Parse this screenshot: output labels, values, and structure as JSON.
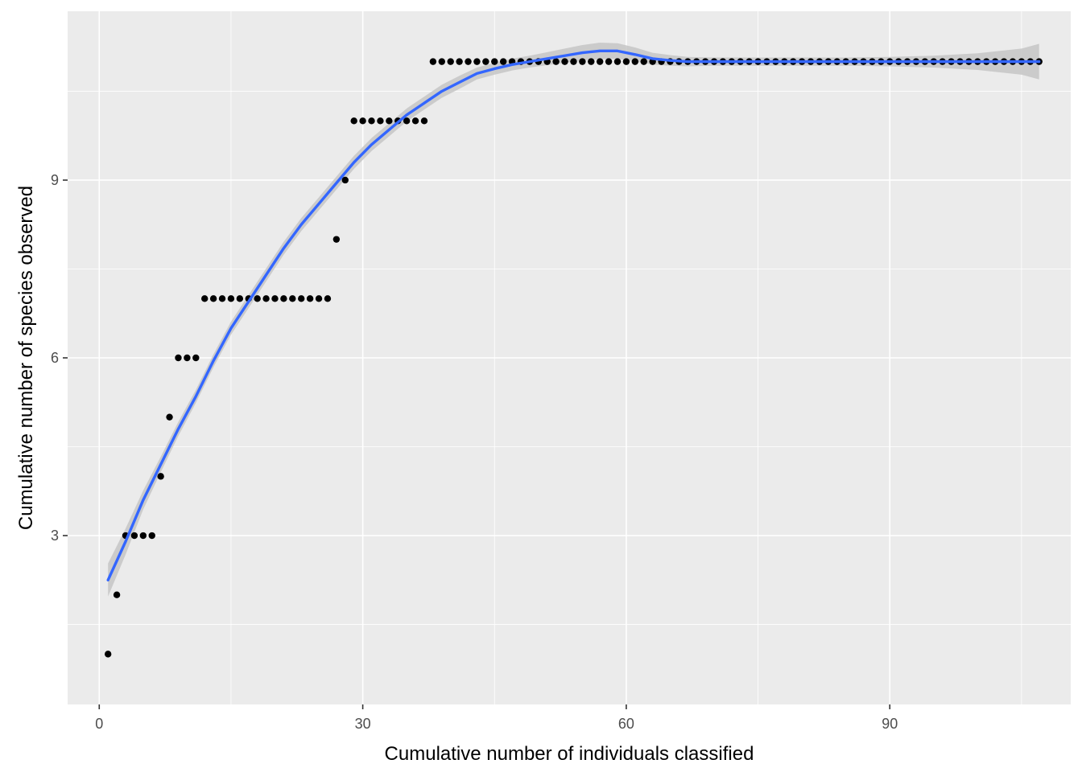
{
  "chart_data": {
    "type": "scatter",
    "title": "",
    "xlabel": "Cumulative number of individuals classified",
    "ylabel": "Cumulative number of species observed",
    "xlim": [
      -3.6,
      110.6
    ],
    "ylim": [
      0.15,
      11.85
    ],
    "x_ticks": [
      0,
      30,
      60,
      90
    ],
    "y_ticks": [
      3,
      6,
      9
    ],
    "x_tick_labels": [
      "0",
      "30",
      "60",
      "90"
    ],
    "y_tick_labels": [
      "3",
      "6",
      "9"
    ],
    "grid": true,
    "background": "#ebebeb",
    "grid_color": "#ffffff",
    "point_color": "#000000",
    "smooth_color": "#3366ff",
    "ribbon_color": "#c6c6c6",
    "points": {
      "x": [
        1,
        2,
        3,
        4,
        5,
        6,
        7,
        8,
        9,
        10,
        11,
        12,
        13,
        14,
        15,
        16,
        17,
        18,
        19,
        20,
        21,
        22,
        23,
        24,
        25,
        26,
        27,
        28,
        29,
        30,
        31,
        32,
        33,
        34,
        35,
        36,
        37,
        38,
        39,
        40,
        41,
        42,
        43,
        44,
        45,
        46,
        47,
        48,
        49,
        50,
        51,
        52,
        53,
        54,
        55,
        56,
        57,
        58,
        59,
        60,
        61,
        62,
        63,
        64,
        65,
        66,
        67,
        68,
        69,
        70,
        71,
        72,
        73,
        74,
        75,
        76,
        77,
        78,
        79,
        80,
        81,
        82,
        83,
        84,
        85,
        86,
        87,
        88,
        89,
        90,
        91,
        92,
        93,
        94,
        95,
        96,
        97,
        98,
        99,
        100,
        101,
        102,
        103,
        104,
        105,
        106,
        107
      ],
      "y": [
        1,
        2,
        3,
        3,
        3,
        3,
        4,
        5,
        6,
        6,
        6,
        7,
        7,
        7,
        7,
        7,
        7,
        7,
        7,
        7,
        7,
        7,
        7,
        7,
        7,
        7,
        8,
        9,
        10,
        10,
        10,
        10,
        10,
        10,
        10,
        10,
        10,
        11,
        11,
        11,
        11,
        11,
        11,
        11,
        11,
        11,
        11,
        11,
        11,
        11,
        11,
        11,
        11,
        11,
        11,
        11,
        11,
        11,
        11,
        11,
        11,
        11,
        11,
        11,
        11,
        11,
        11,
        11,
        11,
        11,
        11,
        11,
        11,
        11,
        11,
        11,
        11,
        11,
        11,
        11,
        11,
        11,
        11,
        11,
        11,
        11,
        11,
        11,
        11,
        11,
        11,
        11,
        11,
        11,
        11,
        11,
        11,
        11,
        11,
        11,
        11,
        11,
        11,
        11,
        11,
        11,
        11
      ]
    },
    "smooth": {
      "x": [
        1,
        3,
        5,
        7,
        9,
        11,
        13,
        15,
        17,
        19,
        21,
        23,
        25,
        27,
        29,
        31,
        33,
        35,
        37,
        39,
        41,
        43,
        45,
        47,
        49,
        51,
        53,
        55,
        57,
        59,
        61,
        63,
        65,
        67,
        70,
        75,
        80,
        85,
        90,
        95,
        100,
        105,
        107
      ],
      "y": [
        2.25,
        2.9,
        3.6,
        4.2,
        4.8,
        5.35,
        5.95,
        6.5,
        6.95,
        7.4,
        7.85,
        8.25,
        8.6,
        8.95,
        9.3,
        9.6,
        9.85,
        10.1,
        10.3,
        10.5,
        10.65,
        10.8,
        10.88,
        10.95,
        11.0,
        11.05,
        11.1,
        11.15,
        11.18,
        11.18,
        11.12,
        11.05,
        11.02,
        11.0,
        11.0,
        11.0,
        11.0,
        11.0,
        11.0,
        11.0,
        11.0,
        11.0,
        11.0
      ],
      "se_half_width": [
        0.28,
        0.22,
        0.16,
        0.13,
        0.12,
        0.11,
        0.11,
        0.11,
        0.11,
        0.11,
        0.11,
        0.11,
        0.11,
        0.11,
        0.11,
        0.11,
        0.11,
        0.11,
        0.11,
        0.11,
        0.11,
        0.1,
        0.1,
        0.1,
        0.1,
        0.11,
        0.12,
        0.13,
        0.14,
        0.13,
        0.12,
        0.1,
        0.09,
        0.08,
        0.07,
        0.07,
        0.07,
        0.07,
        0.08,
        0.1,
        0.14,
        0.22,
        0.3
      ]
    }
  }
}
